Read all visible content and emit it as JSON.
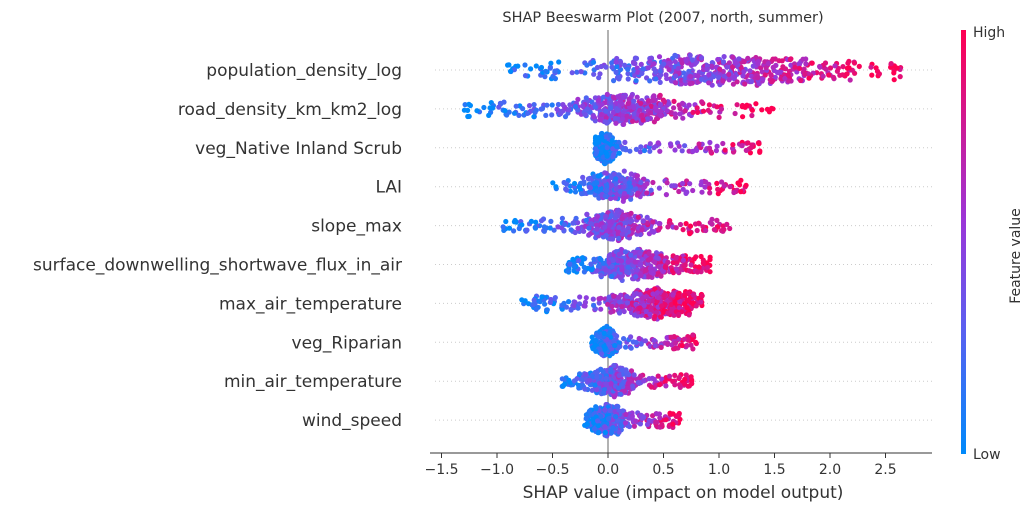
{
  "chart_data": {
    "type": "scatter",
    "subtype": "shap-beeswarm",
    "title": "SHAP Beeswarm Plot (2007, north, summer)",
    "xlabel": "SHAP value (impact on model output)",
    "xlim": [
      -1.55,
      2.85
    ],
    "xticks": [
      -1.5,
      -1.0,
      -0.5,
      0.0,
      0.5,
      1.0,
      1.5,
      2.0,
      2.5
    ],
    "xtick_labels": [
      "−1.5",
      "−1.0",
      "−0.5",
      "0.0",
      "0.5",
      "1.0",
      "1.5",
      "2.0",
      "2.5"
    ],
    "colorbar": {
      "title": "Feature value",
      "high_label": "High",
      "low_label": "Low",
      "low_color": "#008afb",
      "high_color": "#ff0052"
    },
    "grid": false,
    "features": [
      {
        "name": "population_density_log",
        "min": -0.98,
        "max": 2.65,
        "peak": 1.0,
        "spread": 0.55,
        "low_side": "left",
        "density": 1.0
      },
      {
        "name": "road_density_km_km2_log",
        "min": -1.32,
        "max": 1.52,
        "peak": 0.15,
        "spread": 0.3,
        "low_side": "left",
        "density": 0.8
      },
      {
        "name": "veg_Native Inland Scrub ",
        "min": -0.12,
        "max": 1.42,
        "peak": -0.02,
        "spread": 0.05,
        "low_side": "left",
        "density": 0.5
      },
      {
        "name": "LAI",
        "min": -0.5,
        "max": 1.25,
        "peak": 0.05,
        "spread": 0.15,
        "low_side": "left",
        "density": 0.6
      },
      {
        "name": "slope_max",
        "min": -0.95,
        "max": 1.12,
        "peak": 0.05,
        "spread": 0.18,
        "low_side": "left",
        "density": 0.65
      },
      {
        "name": "surface_downwelling_shortwave_flux_in_air",
        "min": -0.38,
        "max": 0.92,
        "peak": 0.2,
        "spread": 0.22,
        "low_side": "left",
        "density": 0.85
      },
      {
        "name": "max_air_temperature",
        "min": -0.78,
        "max": 0.85,
        "peak": 0.42,
        "spread": 0.2,
        "low_side": "left",
        "density": 0.85
      },
      {
        "name": "veg_Riparian ",
        "min": -0.15,
        "max": 0.82,
        "peak": -0.02,
        "spread": 0.05,
        "low_side": "left",
        "density": 0.45
      },
      {
        "name": "min_air_temperature",
        "min": -0.42,
        "max": 0.76,
        "peak": 0.05,
        "spread": 0.12,
        "low_side": "left",
        "density": 0.6
      },
      {
        "name": "wind_speed",
        "min": -0.22,
        "max": 0.65,
        "peak": 0.0,
        "spread": 0.1,
        "low_side": "left",
        "density": 0.6
      }
    ]
  }
}
